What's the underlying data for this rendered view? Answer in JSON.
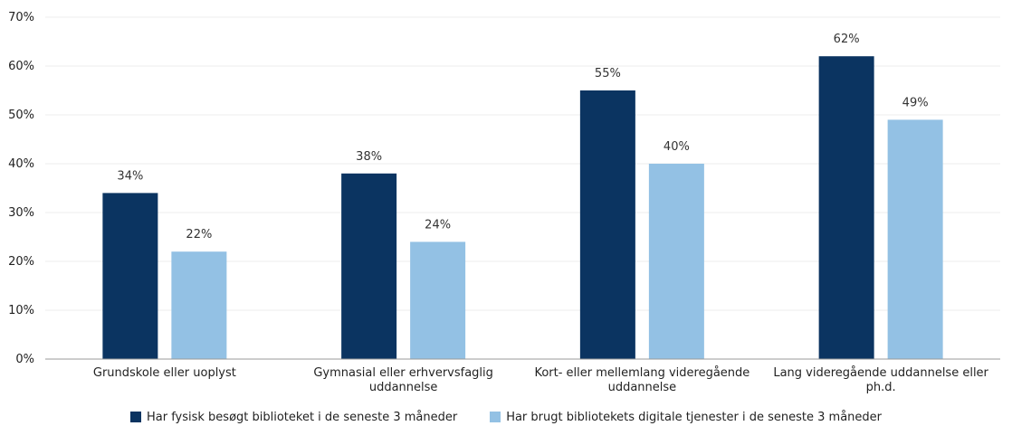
{
  "chart_data": {
    "type": "bar",
    "title": "",
    "xlabel": "",
    "ylabel": "",
    "ylim": [
      0,
      70
    ],
    "yticks": [
      "0%",
      "10%",
      "20%",
      "30%",
      "40%",
      "50%",
      "60%",
      "70%"
    ],
    "grid": true,
    "legend_position": "bottom",
    "categories": [
      [
        "Grundskole eller uoplyst"
      ],
      [
        "Gymnasial eller erhvervsfaglig",
        "uddannelse"
      ],
      [
        "Kort- eller mellemlang videregående",
        "uddannelse"
      ],
      [
        "Lang videregående uddannelse eller",
        "ph.d."
      ]
    ],
    "series": [
      {
        "name": "Har fysisk besøgt biblioteket i de seneste 3 måneder",
        "color": "#0b3461",
        "values": [
          34,
          38,
          55,
          62
        ],
        "labels": [
          "34%",
          "38%",
          "55%",
          "62%"
        ]
      },
      {
        "name": "Har brugt bibliotekets digitale tjenester i de seneste 3 måneder",
        "color": "#93c1e4",
        "values": [
          22,
          24,
          40,
          49
        ],
        "labels": [
          "22%",
          "24%",
          "40%",
          "49%"
        ]
      }
    ]
  }
}
